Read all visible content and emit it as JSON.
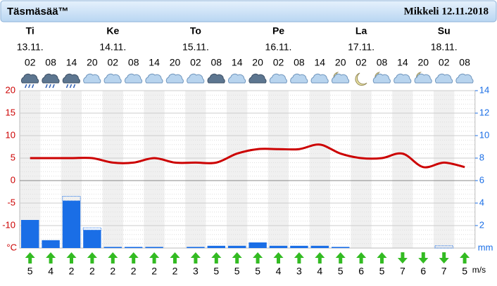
{
  "header": {
    "title": "Täsmäsää™",
    "location": "Mikkeli 12.11.2018"
  },
  "chart_data": {
    "type": "weather",
    "days": [
      {
        "name": "Ti",
        "date": "13.11."
      },
      {
        "name": "Ke",
        "date": "14.11."
      },
      {
        "name": "To",
        "date": "15.11."
      },
      {
        "name": "Pe",
        "date": "16.11."
      },
      {
        "name": "La",
        "date": "17.11."
      },
      {
        "name": "Su",
        "date": "18.11."
      }
    ],
    "categories": [
      "02",
      "08",
      "14",
      "20",
      "02",
      "08",
      "14",
      "20",
      "02",
      "08",
      "14",
      "20",
      "02",
      "08",
      "14",
      "20",
      "02",
      "08",
      "14",
      "20",
      "02",
      "08"
    ],
    "temperature": {
      "color": "#cc0000",
      "values": [
        5,
        5,
        5,
        5,
        4,
        4,
        5,
        4,
        4,
        4,
        6,
        7,
        7,
        7,
        8,
        6,
        5,
        5,
        6,
        3,
        4,
        3
      ]
    },
    "precipitation": {
      "color": "#1a6ee6",
      "values": [
        2.5,
        0.7,
        4.2,
        1.6,
        0.1,
        0.1,
        0.1,
        0,
        0.1,
        0.2,
        0.2,
        0.5,
        0.2,
        0.2,
        0.2,
        0.1,
        0,
        0,
        0,
        0,
        0,
        0
      ],
      "upper": [
        2.5,
        0.7,
        4.6,
        1.8,
        0.1,
        0.1,
        0.1,
        0,
        0.1,
        0.2,
        0.2,
        0.5,
        0.2,
        0.2,
        0.2,
        0.1,
        0,
        0,
        0,
        0,
        0.2,
        0
      ]
    },
    "wind": {
      "color": "#33bb22",
      "speeds": [
        5,
        4,
        2,
        2,
        2,
        2,
        2,
        2,
        3,
        5,
        5,
        5,
        4,
        3,
        4,
        5,
        6,
        5,
        7,
        6,
        7,
        5
      ],
      "directions": [
        0,
        0,
        0,
        0,
        0,
        0,
        0,
        0,
        0,
        0,
        0,
        0,
        0,
        0,
        0,
        0,
        0,
        0,
        180,
        180,
        180,
        0
      ]
    },
    "ylim": [
      -15,
      20
    ],
    "yticks": [
      -10,
      -5,
      0,
      5,
      10,
      15,
      20
    ],
    "ylabel": "°C",
    "y2lim": [
      0,
      14
    ],
    "y2ticks": [
      2,
      4,
      6,
      8,
      10,
      12,
      14
    ],
    "y2label": "mm",
    "wind_unit": "m/s"
  }
}
